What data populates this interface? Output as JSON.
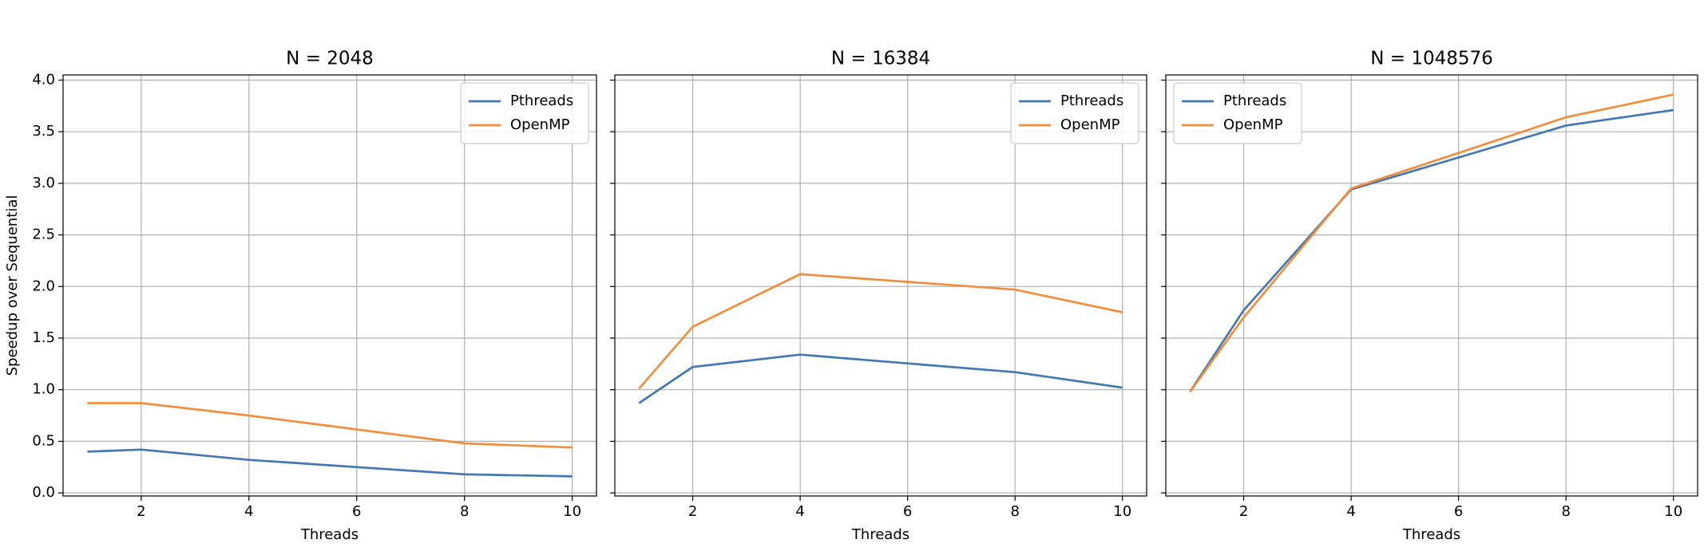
{
  "chart_data": [
    {
      "type": "line",
      "title": "N = 2048",
      "xlabel": "Threads",
      "ylabel": "Speedup over Sequential",
      "x": [
        1,
        2,
        4,
        8,
        10
      ],
      "series": [
        {
          "name": "Pthreads",
          "color": "#4378b4",
          "values": [
            0.4,
            0.42,
            0.32,
            0.18,
            0.16
          ]
        },
        {
          "name": "OpenMP",
          "color": "#f28e3b",
          "values": [
            0.87,
            0.87,
            0.75,
            0.48,
            0.44
          ]
        }
      ],
      "xlim": [
        0.55,
        10.45
      ],
      "ylim": [
        -0.03,
        4.05
      ],
      "xticks": [
        2,
        4,
        6,
        8,
        10
      ],
      "yticks": [
        {
          "value": 0,
          "label": "0.0"
        },
        0.5,
        {
          "value": 1,
          "label": "1.0"
        },
        1.5,
        {
          "value": 2,
          "label": "2.0"
        },
        2.5,
        {
          "value": 3,
          "label": "3.0"
        },
        3.5,
        {
          "value": 4,
          "label": "4.0"
        }
      ],
      "grid": true,
      "legend": "upper right"
    },
    {
      "type": "line",
      "title": "N = 16384",
      "xlabel": "Threads",
      "x": [
        1,
        2,
        4,
        8,
        10
      ],
      "series": [
        {
          "name": "Pthreads",
          "color": "#4378b4",
          "values": [
            0.87,
            1.22,
            1.34,
            1.17,
            1.02
          ]
        },
        {
          "name": "OpenMP",
          "color": "#f28e3b",
          "values": [
            1.01,
            1.61,
            2.12,
            1.97,
            1.75
          ]
        }
      ],
      "xlim": [
        0.55,
        10.45
      ],
      "ylim": [
        -0.03,
        4.05
      ],
      "xticks": [
        2,
        4,
        6,
        8,
        10
      ],
      "grid": true,
      "legend": "upper right"
    },
    {
      "type": "line",
      "title": "N = 1048576",
      "xlabel": "Threads",
      "x": [
        1,
        2,
        4,
        8,
        10
      ],
      "series": [
        {
          "name": "Pthreads",
          "color": "#4378b4",
          "values": [
            0.98,
            1.77,
            2.94,
            3.56,
            3.71
          ]
        },
        {
          "name": "OpenMP",
          "color": "#f28e3b",
          "values": [
            0.98,
            1.7,
            2.95,
            3.64,
            3.86
          ]
        }
      ],
      "xlim": [
        0.55,
        10.45
      ],
      "ylim": [
        -0.03,
        4.05
      ],
      "xticks": [
        2,
        4,
        6,
        8,
        10
      ],
      "grid": true,
      "legend": "upper left"
    }
  ]
}
